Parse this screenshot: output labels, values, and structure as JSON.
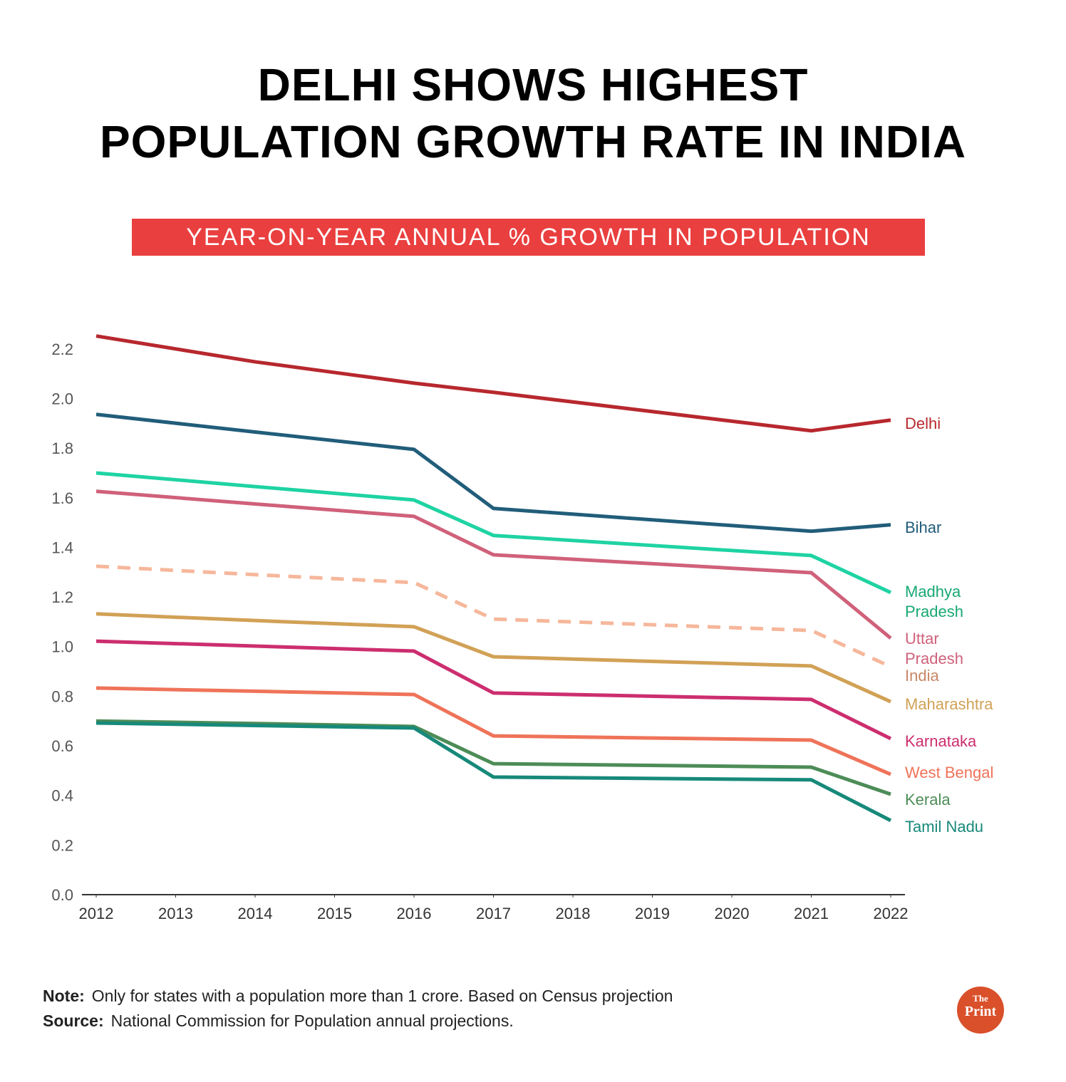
{
  "chart_data": {
    "type": "line",
    "title": [
      "DELHI SHOWS HIGHEST",
      "POPULATION GROWTH RATE IN INDIA"
    ],
    "subtitle": "YEAR-ON-YEAR ANNUAL % GROWTH IN POPULATION",
    "x": [
      2012,
      2014,
      2016,
      2017,
      2021,
      2022
    ],
    "xlim": [
      2012,
      2022
    ],
    "xticks": [
      2012,
      2013,
      2014,
      2015,
      2016,
      2017,
      2018,
      2019,
      2020,
      2021,
      2022
    ],
    "ylim": [
      0,
      2.3
    ],
    "yticks": [
      {
        "value": 0,
        "label": "0.0"
      },
      0.2,
      0.4,
      0.6,
      0.8,
      {
        "value": 1,
        "label": "1.0"
      },
      1.2,
      1.4,
      1.6,
      1.8,
      {
        "value": 2,
        "label": "2.0"
      },
      2.2
    ],
    "grid": false,
    "series": [
      {
        "name": "Delhi",
        "color": "#b7282e",
        "values": [
          2.252,
          2.148,
          2.062,
          2.025,
          1.87,
          1.913
        ]
      },
      {
        "name": "Bihar",
        "color": "#215d7a",
        "values": [
          1.936,
          1.865,
          1.795,
          1.557,
          1.465,
          1.491
        ]
      },
      {
        "name": "Madhya Pradesh",
        "color": "#1fd3a3",
        "values": [
          1.7,
          1.645,
          1.591,
          1.448,
          1.367,
          1.218
        ]
      },
      {
        "name": "Uttar Pradesh",
        "color": "#d0617a",
        "values": [
          1.626,
          1.575,
          1.525,
          1.37,
          1.298,
          1.034
        ]
      },
      {
        "name": "India",
        "color": "#f6b79b",
        "dashed": true,
        "values": [
          1.324,
          1.29,
          1.258,
          1.111,
          1.065,
          0.919
        ]
      },
      {
        "name": "Maharashtra",
        "color": "#d1a156",
        "values": [
          1.132,
          1.105,
          1.08,
          0.959,
          0.922,
          0.778
        ]
      },
      {
        "name": "Karnataka",
        "color": "#cc2e6f",
        "values": [
          1.022,
          1.002,
          0.982,
          0.813,
          0.787,
          0.629
        ]
      },
      {
        "name": "West Bengal",
        "color": "#ef7359",
        "values": [
          0.833,
          0.82,
          0.807,
          0.64,
          0.623,
          0.485
        ]
      },
      {
        "name": "Kerala",
        "color": "#4d8c57",
        "values": [
          0.7,
          0.69,
          0.678,
          0.528,
          0.514,
          0.405
        ]
      },
      {
        "name": "Tamil Nadu",
        "color": "#17897a",
        "values": [
          0.692,
          0.682,
          0.672,
          0.474,
          0.463,
          0.299
        ]
      }
    ],
    "note_label": "Note:",
    "note": "Only for states with a population more than 1 crore. Based on Census projection",
    "source_label": "Source:",
    "source": "National Commission for Population annual projections.",
    "logo": [
      "The",
      "Print"
    ]
  }
}
